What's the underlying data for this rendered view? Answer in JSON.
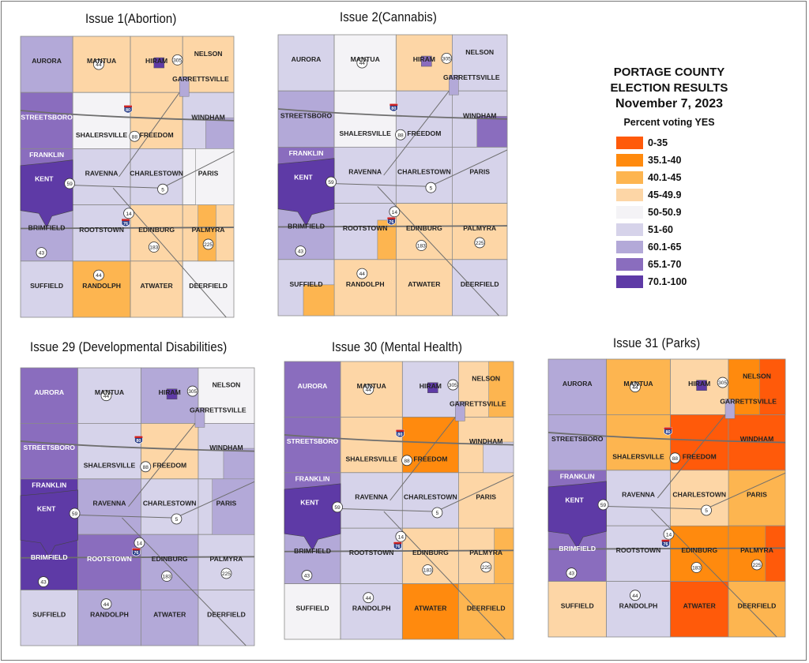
{
  "legend": {
    "title_lines": [
      "PORTAGE COUNTY",
      "ELECTION RESULTS",
      "November 7, 2023"
    ],
    "subtitle": "Percent voting YES",
    "bins": [
      {
        "label": "0-35",
        "color": "#FF5A0A"
      },
      {
        "label": "35.1-40",
        "color": "#FF8A0E"
      },
      {
        "label": "40.1-45",
        "color": "#FDB550"
      },
      {
        "label": "45-49.9",
        "color": "#FDD6A6"
      },
      {
        "label": "50-50.9",
        "color": "#F4F3F6"
      },
      {
        "label": "51-60",
        "color": "#D6D3EA"
      },
      {
        "label": "60.1-65",
        "color": "#B3A9D8"
      },
      {
        "label": "65.1-70",
        "color": "#8A6DBE"
      },
      {
        "label": "70.1-100",
        "color": "#5E3AA6"
      }
    ]
  },
  "township_names": [
    [
      "AURORA",
      "MANTUA",
      "HIRAM",
      "NELSON"
    ],
    [
      "STREETSBORO",
      "SHALERSVILLE",
      "FREEDOM",
      "WINDHAM"
    ],
    [
      "FRANKLIN",
      "RAVENNA",
      "CHARLESTOWN",
      "PARIS"
    ],
    [
      "BRIMFIELD",
      "ROOTSTOWN",
      "EDINBURG",
      "PALMYRA"
    ],
    [
      "SUFFIELD",
      "RANDOLPH",
      "ATWATER",
      "DEERFIELD"
    ]
  ],
  "extra_places": [
    "KENT",
    "GARRETTSVILLE"
  ],
  "route_shields": [
    "44",
    "305",
    "88",
    "59",
    "5",
    "14",
    "43",
    "183",
    "225",
    "44"
  ],
  "interstates": [
    "80",
    "76"
  ],
  "maps": [
    {
      "title": "Issue 1(Abortion)",
      "bins": [
        [
          6,
          3,
          3,
          3
        ],
        [
          7,
          4,
          3,
          5
        ],
        [
          7,
          5,
          5,
          4
        ],
        [
          6,
          5,
          3,
          3
        ],
        [
          5,
          2,
          3,
          4
        ]
      ],
      "kent_bin": 8,
      "accents": {
        "hiram_block": 8,
        "palmyra_strip": 2,
        "windham_east": 6,
        "paris": 4
      }
    },
    {
      "title": "Issue 2(Cannabis)",
      "bins": [
        [
          5,
          4,
          3,
          5
        ],
        [
          6,
          4,
          5,
          5
        ],
        [
          7,
          5,
          5,
          5
        ],
        [
          6,
          5,
          3,
          3
        ],
        [
          5,
          3,
          3,
          5
        ]
      ],
      "kent_bin": 8,
      "accents": {
        "hiram_block": 7,
        "windham_east": 7,
        "rootstown_se": 2,
        "suffield_se": 2
      }
    },
    {
      "title": "Issue 29 (Developmental Disabilities)",
      "bins": [
        [
          7,
          5,
          6,
          4
        ],
        [
          7,
          5,
          3,
          5
        ],
        [
          8,
          6,
          5,
          5
        ],
        [
          8,
          7,
          6,
          5
        ],
        [
          5,
          6,
          6,
          5
        ]
      ],
      "kent_bin": 8,
      "accents": {
        "hiram_block": 8,
        "windham_east": 6,
        "paris": 6
      }
    },
    {
      "title": "Issue 30 (Mental Health)",
      "bins": [
        [
          7,
          3,
          5,
          3
        ],
        [
          7,
          3,
          1,
          3
        ],
        [
          7,
          5,
          5,
          3
        ],
        [
          6,
          5,
          3,
          3
        ],
        [
          4,
          5,
          1,
          2
        ]
      ],
      "kent_bin": 8,
      "accents": {
        "hiram_block": 8,
        "nelson_east": 2,
        "windham_east": 5,
        "palmyra_east": 2
      }
    },
    {
      "title": "Issue 31 (Parks)",
      "bins": [
        [
          6,
          2,
          3,
          1
        ],
        [
          6,
          2,
          0,
          0
        ],
        [
          7,
          5,
          3,
          2
        ],
        [
          7,
          5,
          1,
          1
        ],
        [
          3,
          5,
          0,
          2
        ]
      ],
      "kent_bin": 8,
      "accents": {
        "hiram_block": 8,
        "nelson_east": 0,
        "palmyra_east": 0,
        "charlestown": 3
      }
    }
  ]
}
